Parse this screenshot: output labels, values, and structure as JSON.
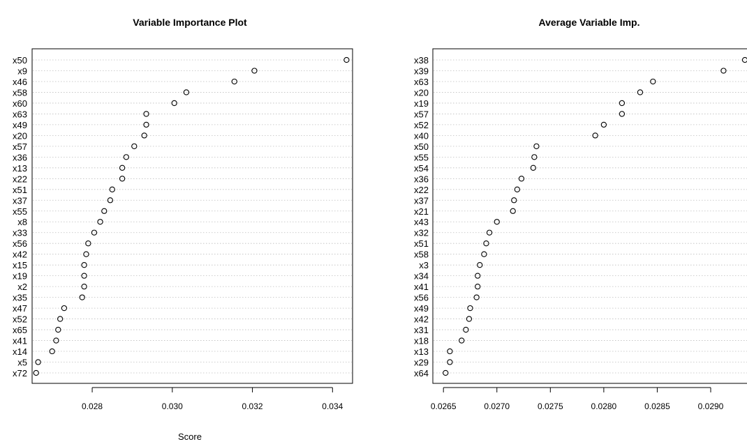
{
  "chart_data": [
    {
      "type": "scatter",
      "title": "Variable Importance Plot",
      "xlabel": "Score",
      "ylabel": "",
      "xlim": [
        0.0265,
        0.0345
      ],
      "xticks": [
        "0.028",
        "0.030",
        "0.032",
        "0.034"
      ],
      "xtick_values": [
        0.028,
        0.03,
        0.032,
        0.034
      ],
      "grid": "horizontal dotted",
      "categories": [
        "x50",
        "x9",
        "x46",
        "x58",
        "x60",
        "x63",
        "x49",
        "x20",
        "x57",
        "x36",
        "x13",
        "x22",
        "x51",
        "x37",
        "x55",
        "x8",
        "x33",
        "x56",
        "x42",
        "x15",
        "x19",
        "x2",
        "x35",
        "x47",
        "x52",
        "x65",
        "x41",
        "x14",
        "x5",
        "x72"
      ],
      "values": [
        0.03435,
        0.03205,
        0.03155,
        0.03035,
        0.03005,
        0.02935,
        0.02935,
        0.0293,
        0.02905,
        0.02885,
        0.02875,
        0.02875,
        0.0285,
        0.02845,
        0.0283,
        0.0282,
        0.02805,
        0.0279,
        0.02785,
        0.0278,
        0.0278,
        0.0278,
        0.02775,
        0.0273,
        0.0272,
        0.02715,
        0.0271,
        0.027,
        0.02665,
        0.0266
      ]
    },
    {
      "type": "scatter",
      "title": "Average Variable Imp.",
      "xlabel": "",
      "ylabel": "",
      "xlim": [
        0.02644,
        0.02932
      ],
      "xticks": [
        "0.0265",
        "0.0270",
        "0.0275",
        "0.0280",
        "0.0285",
        "0.0290"
      ],
      "xtick_values": [
        0.0265,
        0.027,
        0.0275,
        0.028,
        0.0285,
        0.029
      ],
      "grid": "horizontal dotted",
      "categories": [
        "x38",
        "x39",
        "x63",
        "x20",
        "x19",
        "x57",
        "x52",
        "x40",
        "x50",
        "x55",
        "x54",
        "x36",
        "x22",
        "x37",
        "x21",
        "x43",
        "x32",
        "x51",
        "x58",
        "x3",
        "x34",
        "x41",
        "x56",
        "x49",
        "x42",
        "x31",
        "x18",
        "x13",
        "x29",
        "x64"
      ],
      "values": [
        0.02932,
        0.02912,
        0.02846,
        0.02834,
        0.02817,
        0.02817,
        0.028,
        0.02792,
        0.02737,
        0.02735,
        0.02734,
        0.02723,
        0.02719,
        0.02716,
        0.02715,
        0.027,
        0.02693,
        0.0269,
        0.02688,
        0.02684,
        0.02682,
        0.02682,
        0.02681,
        0.02675,
        0.02674,
        0.02671,
        0.02667,
        0.02656,
        0.02656,
        0.02652
      ]
    }
  ]
}
